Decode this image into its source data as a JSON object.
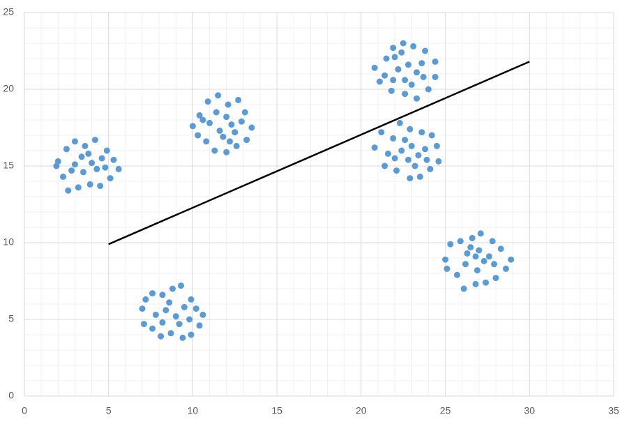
{
  "chart_data": {
    "type": "scatter",
    "xlim": [
      0,
      35
    ],
    "xticks": [
      0,
      5,
      10,
      15,
      20,
      25,
      30,
      35
    ],
    "ylim": [
      0,
      25
    ],
    "yticks": [
      0,
      5,
      10,
      15,
      20,
      25
    ],
    "xminorticks": [
      1,
      2,
      3,
      4,
      6,
      7,
      8,
      9,
      11,
      12,
      13,
      14,
      16,
      17,
      18,
      19,
      21,
      22,
      23,
      24,
      26,
      27,
      28,
      29,
      31,
      32,
      33,
      34
    ],
    "yminorticks": [
      1,
      2,
      3,
      4,
      6,
      7,
      8,
      9,
      11,
      12,
      13,
      14,
      16,
      17,
      18,
      19,
      21,
      22,
      23,
      24
    ],
    "grid": true,
    "series": [
      {
        "type": "scatter",
        "color": "#5b9bd5",
        "x": [
          2.0,
          2.5,
          3.0,
          3.6,
          4.2,
          4.9,
          5.3,
          5.6,
          5.1,
          4.5,
          3.9,
          3.2,
          2.6,
          2.3,
          1.9,
          3.0,
          3.5,
          4.0,
          4.3,
          4.6,
          3.8,
          2.8,
          4.8,
          3.4,
          10.0,
          10.4,
          10.9,
          11.5,
          12.1,
          12.7,
          13.1,
          13.5,
          13.2,
          12.6,
          12.0,
          11.3,
          10.8,
          10.3,
          11.0,
          11.6,
          12.3,
          12.0,
          11.8,
          12.5,
          11.4,
          12.9,
          10.6,
          12.2,
          20.8,
          21.1,
          21.5,
          21.9,
          22.5,
          23.1,
          23.8,
          24.4,
          24.4,
          24.0,
          23.3,
          22.6,
          21.8,
          21.4,
          22.2,
          22.8,
          23.3,
          22.6,
          23.0,
          22.0,
          23.6,
          22.4,
          21.9,
          23.7,
          20.8,
          21.2,
          21.9,
          22.3,
          22.9,
          23.6,
          24.2,
          24.5,
          24.6,
          24.1,
          23.5,
          22.9,
          22.1,
          21.4,
          21.6,
          22.4,
          23.0,
          23.4,
          22.8,
          23.8,
          22.6,
          23.2,
          22.0,
          23.9,
          25.0,
          25.3,
          25.9,
          26.6,
          27.1,
          27.8,
          28.3,
          28.9,
          28.6,
          28.0,
          27.4,
          26.8,
          26.1,
          25.7,
          25.1,
          26.2,
          26.8,
          27.3,
          27.0,
          27.6,
          26.5,
          27.9,
          26.9,
          26.3,
          7.0,
          7.2,
          7.6,
          8.2,
          8.8,
          9.3,
          9.9,
          10.2,
          10.6,
          10.4,
          9.9,
          9.4,
          8.7,
          8.1,
          7.6,
          7.1,
          7.8,
          8.4,
          9.0,
          9.5,
          8.6,
          9.2,
          8.2,
          9.8
        ],
        "values": [
          15.3,
          16.1,
          16.6,
          16.3,
          16.7,
          16.0,
          15.4,
          14.8,
          14.2,
          13.7,
          13.8,
          13.6,
          13.4,
          14.3,
          15.0,
          15.1,
          14.6,
          15.2,
          14.8,
          15.5,
          15.8,
          14.7,
          14.9,
          15.6,
          17.6,
          18.3,
          19.2,
          19.6,
          19.0,
          19.3,
          18.5,
          17.5,
          16.7,
          16.3,
          15.9,
          16.0,
          16.6,
          17.0,
          17.8,
          17.3,
          17.7,
          18.2,
          16.9,
          17.2,
          18.5,
          17.9,
          18.0,
          16.6,
          21.4,
          20.5,
          22.0,
          22.7,
          23.0,
          22.8,
          22.5,
          21.8,
          20.8,
          20.0,
          19.4,
          19.7,
          19.9,
          20.9,
          21.3,
          21.6,
          21.1,
          20.6,
          20.3,
          22.1,
          21.7,
          22.4,
          20.6,
          20.8,
          16.2,
          17.2,
          16.8,
          17.8,
          17.4,
          17.2,
          17.0,
          16.3,
          15.3,
          14.8,
          14.3,
          14.2,
          14.7,
          15.0,
          15.8,
          16.0,
          16.3,
          15.7,
          15.4,
          16.1,
          16.7,
          15.0,
          15.5,
          15.4,
          8.9,
          9.9,
          10.1,
          10.3,
          10.6,
          10.1,
          9.6,
          8.9,
          8.3,
          7.7,
          7.4,
          7.3,
          7.0,
          7.9,
          8.3,
          8.6,
          9.1,
          8.8,
          9.5,
          9.1,
          9.7,
          8.6,
          8.2,
          9.3,
          5.7,
          6.3,
          6.7,
          6.6,
          7.0,
          7.2,
          6.3,
          5.7,
          5.3,
          4.6,
          4.0,
          3.8,
          4.1,
          3.9,
          4.4,
          4.7,
          5.3,
          5.6,
          5.2,
          5.8,
          6.1,
          4.7,
          4.8,
          5.0
        ]
      },
      {
        "type": "line",
        "color": "#000000",
        "x": [
          5,
          30
        ],
        "values": [
          9.9,
          21.8
        ]
      }
    ]
  }
}
